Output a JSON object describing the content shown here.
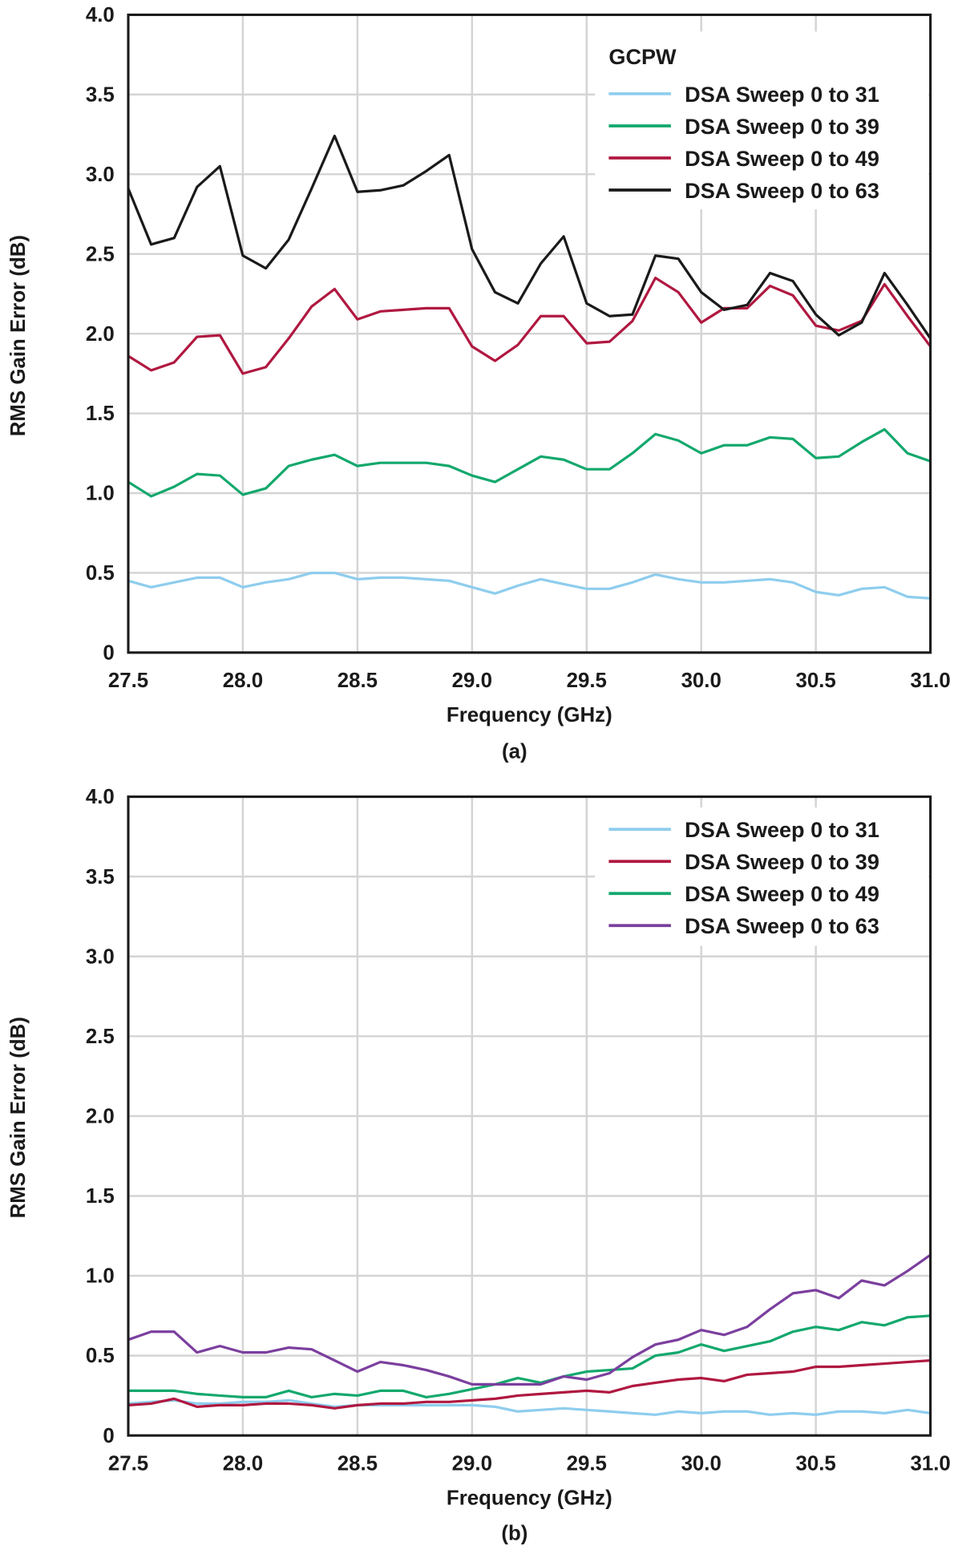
{
  "chart_data": [
    {
      "id": "a",
      "type": "line",
      "caption": "(a)",
      "legend_title": "GCPW",
      "legend_position": "top-right",
      "xlabel": "Frequency (GHz)",
      "ylabel": "RMS Gain Error (dB)",
      "xlim": [
        27.5,
        31.0
      ],
      "ylim": [
        0,
        4.0
      ],
      "grid": true,
      "xticks": [
        "27.5",
        "28.0",
        "28.5",
        "29.0",
        "29.5",
        "30.0",
        "30.5",
        "31.0"
      ],
      "yticks": [
        "0",
        "0.5",
        "1.0",
        "1.5",
        "2.0",
        "2.5",
        "3.0",
        "3.5",
        "4.0"
      ],
      "x": [
        27.5,
        27.6,
        27.7,
        27.8,
        27.9,
        28.0,
        28.1,
        28.2,
        28.3,
        28.4,
        28.5,
        28.6,
        28.7,
        28.8,
        28.9,
        29.0,
        29.1,
        29.2,
        29.3,
        29.4,
        29.5,
        29.6,
        29.7,
        29.8,
        29.9,
        30.0,
        30.1,
        30.2,
        30.3,
        30.4,
        30.5,
        30.6,
        30.7,
        30.8,
        30.9,
        31.0
      ],
      "series": [
        {
          "name": "DSA Sweep 0 to 31",
          "color": "#8ecdee",
          "values": [
            0.45,
            0.41,
            0.44,
            0.47,
            0.47,
            0.41,
            0.44,
            0.46,
            0.5,
            0.5,
            0.46,
            0.47,
            0.47,
            0.46,
            0.45,
            0.41,
            0.37,
            0.42,
            0.46,
            0.43,
            0.4,
            0.4,
            0.44,
            0.49,
            0.46,
            0.44,
            0.44,
            0.45,
            0.46,
            0.44,
            0.38,
            0.36,
            0.4,
            0.41,
            0.35,
            0.34
          ]
        },
        {
          "name": "DSA Sweep 0 to 39",
          "color": "#13a86d",
          "values": [
            1.07,
            0.98,
            1.04,
            1.12,
            1.11,
            0.99,
            1.03,
            1.17,
            1.21,
            1.24,
            1.17,
            1.19,
            1.19,
            1.19,
            1.17,
            1.11,
            1.07,
            1.15,
            1.23,
            1.21,
            1.15,
            1.15,
            1.25,
            1.37,
            1.33,
            1.25,
            1.3,
            1.3,
            1.35,
            1.34,
            1.22,
            1.23,
            1.32,
            1.4,
            1.25,
            1.2
          ]
        },
        {
          "name": "DSA Sweep 0 to 49",
          "color": "#b01840",
          "values": [
            1.86,
            1.77,
            1.82,
            1.98,
            1.99,
            1.75,
            1.79,
            1.97,
            2.17,
            2.28,
            2.09,
            2.14,
            2.15,
            2.16,
            2.16,
            1.92,
            1.83,
            1.93,
            2.11,
            2.11,
            1.94,
            1.95,
            2.08,
            2.35,
            2.26,
            2.07,
            2.16,
            2.16,
            2.3,
            2.24,
            2.05,
            2.02,
            2.08,
            2.31,
            2.11,
            1.92
          ]
        },
        {
          "name": "DSA Sweep 0 to 63",
          "color": "#1a1a1a",
          "values": [
            2.91,
            2.56,
            2.6,
            2.92,
            3.05,
            2.49,
            2.41,
            2.59,
            2.91,
            3.24,
            2.89,
            2.9,
            2.93,
            3.02,
            3.12,
            2.53,
            2.26,
            2.19,
            2.44,
            2.61,
            2.19,
            2.11,
            2.12,
            2.49,
            2.47,
            2.26,
            2.15,
            2.18,
            2.38,
            2.33,
            2.12,
            1.99,
            2.07,
            2.38,
            2.18,
            1.97
          ]
        }
      ]
    },
    {
      "id": "b",
      "type": "line",
      "caption": "(b)",
      "legend_position": "top-right",
      "xlabel": "Frequency (GHz)",
      "ylabel": "RMS Gain Error (dB)",
      "xlim": [
        27.5,
        31.0
      ],
      "ylim": [
        0,
        4.0
      ],
      "grid": true,
      "xticks": [
        "27.5",
        "28.0",
        "28.5",
        "29.0",
        "29.5",
        "30.0",
        "30.5",
        "31.0"
      ],
      "yticks": [
        "0",
        "0.5",
        "1.0",
        "1.5",
        "2.0",
        "2.5",
        "3.0",
        "3.5",
        "4.0"
      ],
      "x": [
        27.5,
        27.6,
        27.7,
        27.8,
        27.9,
        28.0,
        28.1,
        28.2,
        28.3,
        28.4,
        28.5,
        28.6,
        28.7,
        28.8,
        28.9,
        29.0,
        29.1,
        29.2,
        29.3,
        29.4,
        29.5,
        29.6,
        29.7,
        29.8,
        29.9,
        30.0,
        30.1,
        30.2,
        30.3,
        30.4,
        30.5,
        30.6,
        30.7,
        30.8,
        30.9,
        31.0
      ],
      "series": [
        {
          "name": "DSA Sweep 0 to 31",
          "color": "#8ecdee",
          "values": [
            0.2,
            0.21,
            0.22,
            0.2,
            0.2,
            0.21,
            0.21,
            0.22,
            0.2,
            0.18,
            0.19,
            0.19,
            0.19,
            0.19,
            0.19,
            0.19,
            0.18,
            0.15,
            0.16,
            0.17,
            0.16,
            0.15,
            0.14,
            0.13,
            0.15,
            0.14,
            0.15,
            0.15,
            0.13,
            0.14,
            0.13,
            0.15,
            0.15,
            0.14,
            0.16,
            0.14
          ]
        },
        {
          "name": "DSA Sweep 0 to 39",
          "color": "#b01840",
          "values": [
            0.19,
            0.2,
            0.23,
            0.18,
            0.19,
            0.19,
            0.2,
            0.2,
            0.19,
            0.17,
            0.19,
            0.2,
            0.2,
            0.21,
            0.21,
            0.22,
            0.23,
            0.25,
            0.26,
            0.27,
            0.28,
            0.27,
            0.31,
            0.33,
            0.35,
            0.36,
            0.34,
            0.38,
            0.39,
            0.4,
            0.43,
            0.43,
            0.44,
            0.45,
            0.46,
            0.47
          ]
        },
        {
          "name": "DSA Sweep 0 to 49",
          "color": "#13a86d",
          "values": [
            0.28,
            0.28,
            0.28,
            0.26,
            0.25,
            0.24,
            0.24,
            0.28,
            0.24,
            0.26,
            0.25,
            0.28,
            0.28,
            0.24,
            0.26,
            0.29,
            0.32,
            0.36,
            0.33,
            0.37,
            0.4,
            0.41,
            0.42,
            0.5,
            0.52,
            0.57,
            0.53,
            0.56,
            0.59,
            0.65,
            0.68,
            0.66,
            0.71,
            0.69,
            0.74,
            0.75
          ]
        },
        {
          "name": "DSA Sweep 0 to 63",
          "color": "#7b3f9e",
          "values": [
            0.6,
            0.65,
            0.65,
            0.52,
            0.56,
            0.52,
            0.52,
            0.55,
            0.54,
            0.47,
            0.4,
            0.46,
            0.44,
            0.41,
            0.37,
            0.32,
            0.32,
            0.32,
            0.32,
            0.37,
            0.35,
            0.39,
            0.49,
            0.57,
            0.6,
            0.66,
            0.63,
            0.68,
            0.79,
            0.89,
            0.91,
            0.86,
            0.97,
            0.94,
            1.03,
            1.13
          ]
        }
      ]
    }
  ]
}
